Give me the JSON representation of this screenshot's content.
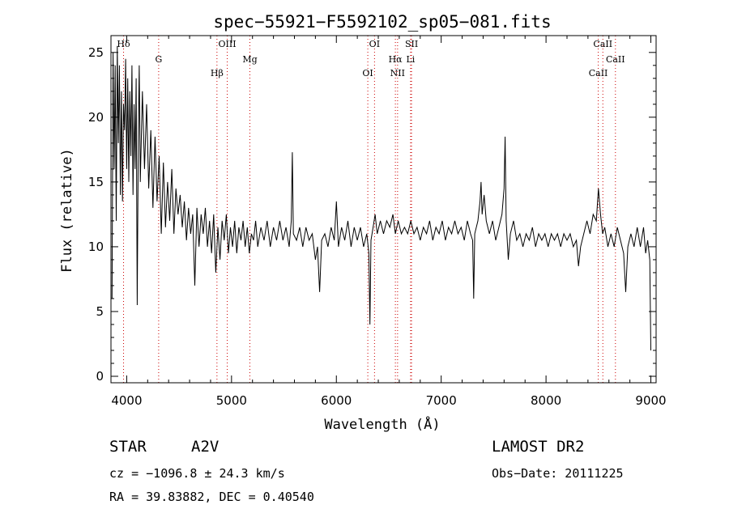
{
  "chart_data": {
    "type": "line",
    "title": "spec−55921−F5592102_sp05−081.fits",
    "xlabel": "Wavelength (Å)",
    "ylabel": "Flux (relative)",
    "xlim": [
      3850,
      9050
    ],
    "ylim": [
      -0.5,
      26.3
    ],
    "xticks": [
      4000,
      5000,
      6000,
      7000,
      8000,
      9000
    ],
    "yticks": [
      0,
      5,
      10,
      15,
      20,
      25
    ],
    "grid": false,
    "line_color": "#000000",
    "marker_color": "#cc0000",
    "series": [
      {
        "points": [
          [
            3860,
            6.0
          ],
          [
            3870,
            25.0
          ],
          [
            3880,
            16.0
          ],
          [
            3890,
            24.0
          ],
          [
            3900,
            12.0
          ],
          [
            3910,
            25.5
          ],
          [
            3920,
            18.0
          ],
          [
            3930,
            24.0
          ],
          [
            3940,
            14.0
          ],
          [
            3950,
            22.0
          ],
          [
            3960,
            13.5
          ],
          [
            3970,
            21.0
          ],
          [
            3980,
            19.0
          ],
          [
            3990,
            24.5
          ],
          [
            4000,
            16.0
          ],
          [
            4010,
            23.0
          ],
          [
            4020,
            15.0
          ],
          [
            4030,
            22.0
          ],
          [
            4040,
            17.0
          ],
          [
            4050,
            24.0
          ],
          [
            4060,
            14.0
          ],
          [
            4070,
            21.0
          ],
          [
            4080,
            16.0
          ],
          [
            4090,
            23.0
          ],
          [
            4100,
            5.5
          ],
          [
            4110,
            18.0
          ],
          [
            4120,
            24.0
          ],
          [
            4130,
            15.0
          ],
          [
            4150,
            22.0
          ],
          [
            4170,
            16.0
          ],
          [
            4190,
            21.0
          ],
          [
            4210,
            14.5
          ],
          [
            4230,
            19.0
          ],
          [
            4250,
            13.0
          ],
          [
            4270,
            18.5
          ],
          [
            4290,
            13.5
          ],
          [
            4310,
            17.0
          ],
          [
            4330,
            11.0
          ],
          [
            4350,
            16.5
          ],
          [
            4370,
            11.5
          ],
          [
            4390,
            15.0
          ],
          [
            4410,
            12.0
          ],
          [
            4430,
            16.0
          ],
          [
            4450,
            11.0
          ],
          [
            4470,
            14.5
          ],
          [
            4490,
            12.5
          ],
          [
            4510,
            14.0
          ],
          [
            4530,
            11.5
          ],
          [
            4550,
            13.5
          ],
          [
            4570,
            10.5
          ],
          [
            4590,
            13.0
          ],
          [
            4610,
            11.0
          ],
          [
            4630,
            12.5
          ],
          [
            4650,
            7.0
          ],
          [
            4670,
            13.0
          ],
          [
            4690,
            10.0
          ],
          [
            4710,
            12.5
          ],
          [
            4730,
            11.0
          ],
          [
            4750,
            13.0
          ],
          [
            4770,
            10.0
          ],
          [
            4790,
            12.0
          ],
          [
            4810,
            9.5
          ],
          [
            4830,
            12.5
          ],
          [
            4850,
            8.0
          ],
          [
            4870,
            11.5
          ],
          [
            4890,
            9.0
          ],
          [
            4910,
            12.0
          ],
          [
            4930,
            10.5
          ],
          [
            4950,
            12.5
          ],
          [
            4970,
            9.5
          ],
          [
            4990,
            11.5
          ],
          [
            5010,
            10.0
          ],
          [
            5030,
            12.0
          ],
          [
            5050,
            9.5
          ],
          [
            5070,
            11.5
          ],
          [
            5090,
            10.5
          ],
          [
            5110,
            12.0
          ],
          [
            5130,
            10.0
          ],
          [
            5150,
            11.5
          ],
          [
            5170,
            9.5
          ],
          [
            5190,
            11.0
          ],
          [
            5210,
            10.5
          ],
          [
            5230,
            12.0
          ],
          [
            5250,
            10.0
          ],
          [
            5280,
            11.5
          ],
          [
            5310,
            10.5
          ],
          [
            5340,
            12.0
          ],
          [
            5370,
            10.0
          ],
          [
            5400,
            11.5
          ],
          [
            5430,
            10.5
          ],
          [
            5460,
            12.0
          ],
          [
            5490,
            10.5
          ],
          [
            5520,
            11.5
          ],
          [
            5550,
            10.0
          ],
          [
            5570,
            12.0
          ],
          [
            5580,
            17.3
          ],
          [
            5590,
            11.0
          ],
          [
            5620,
            10.5
          ],
          [
            5650,
            11.5
          ],
          [
            5680,
            10.0
          ],
          [
            5710,
            11.5
          ],
          [
            5740,
            10.5
          ],
          [
            5770,
            11.0
          ],
          [
            5800,
            9.0
          ],
          [
            5820,
            10.0
          ],
          [
            5840,
            6.5
          ],
          [
            5860,
            10.5
          ],
          [
            5890,
            11.0
          ],
          [
            5920,
            10.0
          ],
          [
            5950,
            11.5
          ],
          [
            5980,
            10.5
          ],
          [
            6000,
            13.5
          ],
          [
            6020,
            10.0
          ],
          [
            6050,
            11.5
          ],
          [
            6080,
            10.5
          ],
          [
            6110,
            12.0
          ],
          [
            6140,
            10.0
          ],
          [
            6170,
            11.5
          ],
          [
            6200,
            10.5
          ],
          [
            6230,
            11.5
          ],
          [
            6260,
            10.0
          ],
          [
            6290,
            11.0
          ],
          [
            6310,
            9.5
          ],
          [
            6320,
            4.0
          ],
          [
            6330,
            10.5
          ],
          [
            6350,
            11.5
          ],
          [
            6370,
            12.5
          ],
          [
            6390,
            11.0
          ],
          [
            6420,
            12.0
          ],
          [
            6450,
            11.0
          ],
          [
            6480,
            12.0
          ],
          [
            6510,
            11.5
          ],
          [
            6540,
            12.5
          ],
          [
            6563,
            11.0
          ],
          [
            6590,
            12.0
          ],
          [
            6620,
            11.0
          ],
          [
            6650,
            11.5
          ],
          [
            6680,
            11.0
          ],
          [
            6710,
            12.0
          ],
          [
            6740,
            11.0
          ],
          [
            6770,
            11.5
          ],
          [
            6800,
            10.5
          ],
          [
            6830,
            11.5
          ],
          [
            6860,
            11.0
          ],
          [
            6890,
            12.0
          ],
          [
            6920,
            10.5
          ],
          [
            6950,
            11.5
          ],
          [
            6980,
            11.0
          ],
          [
            7010,
            12.0
          ],
          [
            7040,
            10.5
          ],
          [
            7070,
            11.5
          ],
          [
            7100,
            11.0
          ],
          [
            7130,
            12.0
          ],
          [
            7160,
            11.0
          ],
          [
            7190,
            11.5
          ],
          [
            7220,
            10.5
          ],
          [
            7250,
            12.0
          ],
          [
            7280,
            11.0
          ],
          [
            7300,
            10.5
          ],
          [
            7310,
            6.0
          ],
          [
            7320,
            11.0
          ],
          [
            7350,
            12.0
          ],
          [
            7370,
            13.5
          ],
          [
            7380,
            15.0
          ],
          [
            7390,
            12.5
          ],
          [
            7410,
            14.0
          ],
          [
            7430,
            12.0
          ],
          [
            7460,
            11.0
          ],
          [
            7490,
            12.0
          ],
          [
            7520,
            10.5
          ],
          [
            7550,
            11.5
          ],
          [
            7580,
            12.5
          ],
          [
            7600,
            14.5
          ],
          [
            7610,
            18.5
          ],
          [
            7620,
            12.0
          ],
          [
            7640,
            9.0
          ],
          [
            7660,
            11.0
          ],
          [
            7690,
            12.0
          ],
          [
            7720,
            10.5
          ],
          [
            7750,
            11.0
          ],
          [
            7780,
            10.0
          ],
          [
            7810,
            11.0
          ],
          [
            7840,
            10.5
          ],
          [
            7870,
            11.5
          ],
          [
            7900,
            10.0
          ],
          [
            7930,
            11.0
          ],
          [
            7960,
            10.5
          ],
          [
            7990,
            11.0
          ],
          [
            8020,
            10.0
          ],
          [
            8050,
            11.0
          ],
          [
            8080,
            10.5
          ],
          [
            8110,
            11.0
          ],
          [
            8140,
            10.0
          ],
          [
            8170,
            11.0
          ],
          [
            8200,
            10.5
          ],
          [
            8230,
            11.0
          ],
          [
            8260,
            10.0
          ],
          [
            8290,
            10.5
          ],
          [
            8310,
            8.5
          ],
          [
            8330,
            10.0
          ],
          [
            8360,
            11.0
          ],
          [
            8390,
            12.0
          ],
          [
            8420,
            11.0
          ],
          [
            8450,
            12.5
          ],
          [
            8480,
            12.0
          ],
          [
            8500,
            14.5
          ],
          [
            8520,
            12.5
          ],
          [
            8540,
            11.0
          ],
          [
            8560,
            11.5
          ],
          [
            8590,
            10.0
          ],
          [
            8620,
            11.0
          ],
          [
            8650,
            10.0
          ],
          [
            8680,
            11.5
          ],
          [
            8710,
            10.5
          ],
          [
            8740,
            9.5
          ],
          [
            8760,
            6.5
          ],
          [
            8780,
            10.0
          ],
          [
            8810,
            11.0
          ],
          [
            8840,
            10.0
          ],
          [
            8870,
            11.5
          ],
          [
            8900,
            10.0
          ],
          [
            8930,
            11.5
          ],
          [
            8950,
            9.5
          ],
          [
            8970,
            10.5
          ],
          [
            8990,
            9.0
          ],
          [
            9000,
            2.0
          ]
        ]
      }
    ],
    "spectral_lines": [
      {
        "label": "Hδ",
        "x": 3970
      },
      {
        "label": "G",
        "x": 4305
      },
      {
        "label": "Hβ",
        "x": 4861
      },
      {
        "label": "OIII",
        "x": 4959
      },
      {
        "label": "Mg",
        "x": 5175
      },
      {
        "label": "OI",
        "x": 6300
      },
      {
        "label": "OI",
        "x": 6364
      },
      {
        "label": "Hα",
        "x": 6563
      },
      {
        "label": "NII",
        "x": 6584
      },
      {
        "label": "SII",
        "x": 6717
      },
      {
        "label": "Li",
        "x": 6708
      },
      {
        "label": "CaII",
        "x": 8498
      },
      {
        "label": "CaII",
        "x": 8542
      },
      {
        "label": "CaII",
        "x": 8662
      }
    ]
  },
  "info": {
    "class_label": "STAR",
    "subclass": "A2V",
    "redshift": "cz = −1096.8 ± 24.3 km/s",
    "coords": "RA =  39.83882, DEC =   0.40540",
    "survey": "LAMOST DR2",
    "obs_date": "Obs−Date: 20111225"
  }
}
